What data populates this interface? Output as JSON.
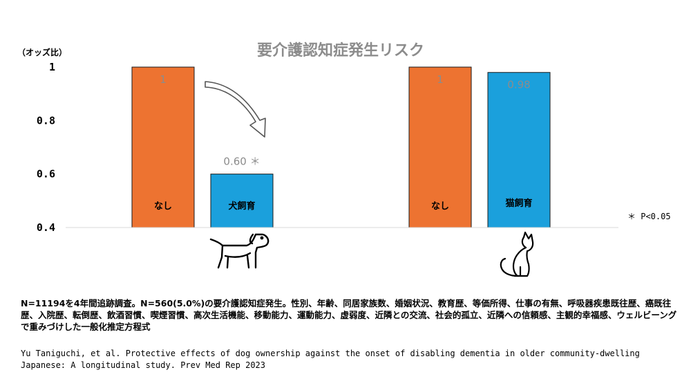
{
  "chart_data": {
    "type": "bar",
    "title": "要介護認知症発生リスク",
    "ylabel": "（オッズ比）",
    "ylim": [
      0.4,
      1
    ],
    "yticks": [
      "0.4",
      "0.6",
      "0.8",
      "1"
    ],
    "grid": false,
    "groups": [
      {
        "animal_icon": "dog-icon",
        "bars": [
          {
            "label": "なし",
            "value": 1,
            "value_label": "1",
            "color": "#ed7331"
          },
          {
            "label": "犬飼育",
            "value": 0.6,
            "value_label": "0.60 ＊",
            "color": "#1ba0dc"
          }
        ]
      },
      {
        "animal_icon": "cat-icon",
        "bars": [
          {
            "label": "なし",
            "value": 1,
            "value_label": "1",
            "color": "#ed7331"
          },
          {
            "label": "猫飼育",
            "value": 0.98,
            "value_label": "0.98",
            "color": "#1ba0dc"
          }
        ]
      }
    ],
    "significance_note": "＊ P<0.05",
    "arrow_icon": "decrease-arrow-icon"
  },
  "notes": "N=11194を4年間追跡調査。N=560(5.0%)の要介護認知症発生。性別、年齢、同居家族数、婚姻状況、教育歴、等価所得、仕事の有無、呼吸器疾患既往歴、癌既往歴、入院歴、転倒歴、飲酒習慣、喫煙習慣、高次生活機能、移動能力、運動能力、虚弱度、近隣との交流、社会的孤立、近隣への信頼感、主観的幸福感、ウェルビーングで重みづけした一般化推定方程式",
  "citation": "Yu Taniguchi, et al. Protective effects of dog ownership against the onset of disabling dementia in older community-dwelling Japanese: A longitudinal study. Prev Med Rep 2023"
}
